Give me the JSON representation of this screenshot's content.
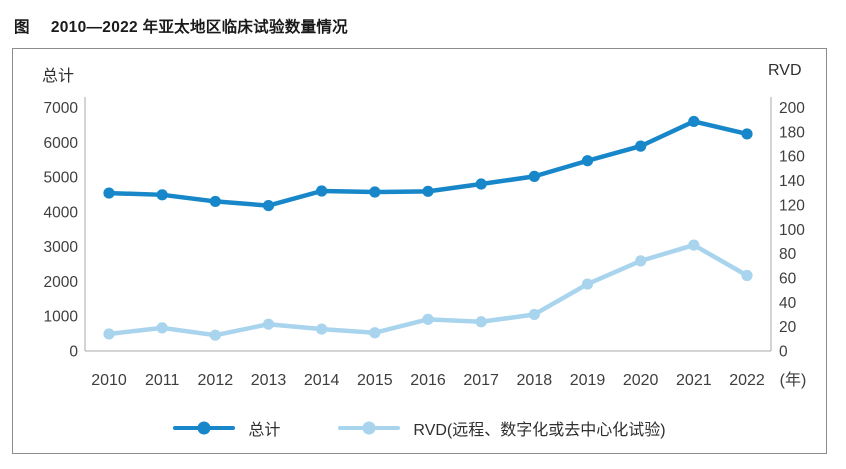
{
  "title": {
    "prefix": "图",
    "text": "2010—2022 年亚太地区临床试验数量情况"
  },
  "axes": {
    "left_label": "总计",
    "right_label": "RVD",
    "x_unit": "(年)"
  },
  "legend": [
    {
      "label": "总计",
      "color": "#1787c9"
    },
    {
      "label": "RVD(远程、数字化或去中心化试验)",
      "color": "#a9d4ee"
    }
  ],
  "colors": {
    "total_line": "#1787c9",
    "rvd_line": "#a9d4ee",
    "axis_line": "#a8a8a8",
    "tick_text": "#3e3e3e",
    "panel_border": "#8c8c8c"
  },
  "chart_data": {
    "type": "line",
    "title": "图 2010—2022 年亚太地区临床试验数量情况",
    "categories": [
      "2010",
      "2011",
      "2012",
      "2013",
      "2014",
      "2015",
      "2016",
      "2017",
      "2018",
      "2019",
      "2020",
      "2021",
      "2022"
    ],
    "x_unit_label": "(年)",
    "grid": false,
    "legend_position": "bottom",
    "series": [
      {
        "name": "总计",
        "axis": "left",
        "color": "#1787c9",
        "values": [
          4540,
          4490,
          4300,
          4180,
          4600,
          4570,
          4590,
          4800,
          5020,
          5470,
          5890,
          6600,
          6240
        ]
      },
      {
        "name": "RVD(远程、数字化或去中心化试验)",
        "axis": "right",
        "color": "#a9d4ee",
        "values": [
          14,
          19,
          13,
          22,
          18,
          15,
          26,
          24,
          30,
          55,
          74,
          87,
          62
        ]
      }
    ],
    "left_axis": {
      "label": "总计",
      "min": 0,
      "max": 7000,
      "step": 1000
    },
    "right_axis": {
      "label": "RVD",
      "min": 0,
      "max": 200,
      "step": 20
    }
  }
}
